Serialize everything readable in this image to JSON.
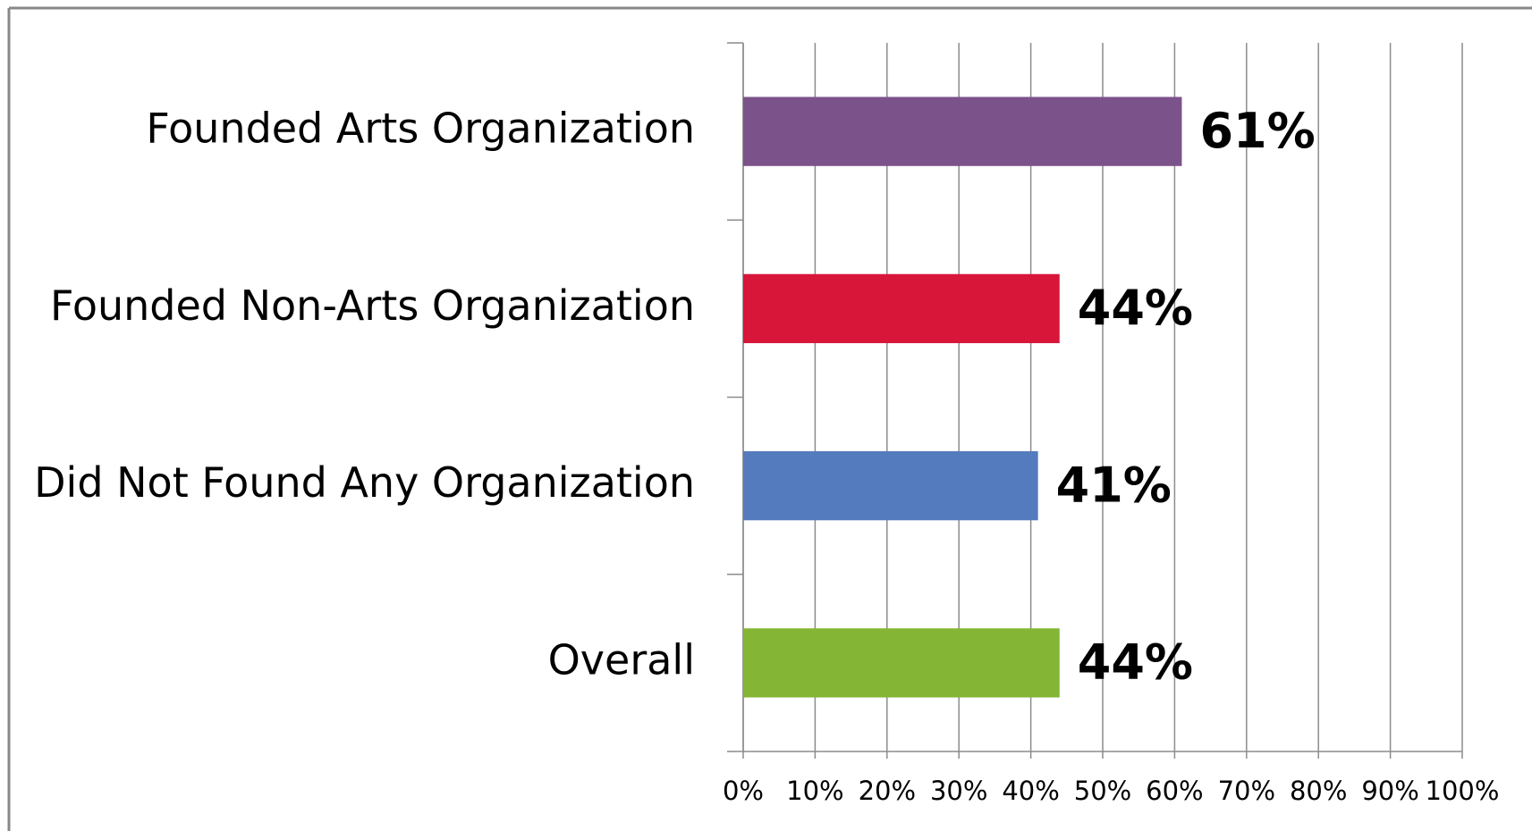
{
  "chart_data": {
    "type": "bar",
    "orientation": "horizontal",
    "categories": [
      "Founded Arts Organization",
      "Founded Non-Arts Organization",
      "Did Not Found Any Organization",
      "Overall"
    ],
    "values": [
      61,
      44,
      41,
      44
    ],
    "value_labels": [
      "61%",
      "44%",
      "41%",
      "44%"
    ],
    "colors": [
      "#7b5289",
      "#d7163a",
      "#547bbd",
      "#84b535"
    ],
    "xlim": [
      0,
      100
    ],
    "xticks": [
      {
        "value": 0,
        "label": "0%"
      },
      {
        "value": 10,
        "label": "10%"
      },
      {
        "value": 20,
        "label": "20%"
      },
      {
        "value": 30,
        "label": "30%"
      },
      {
        "value": 40,
        "label": "40%"
      },
      {
        "value": 50,
        "label": "50%"
      },
      {
        "value": 60,
        "label": "60%"
      },
      {
        "value": 70,
        "label": "70%"
      },
      {
        "value": 80,
        "label": "80%"
      },
      {
        "value": 90,
        "label": "90%"
      },
      {
        "value": 100,
        "label": "100%"
      }
    ],
    "grid": true
  }
}
